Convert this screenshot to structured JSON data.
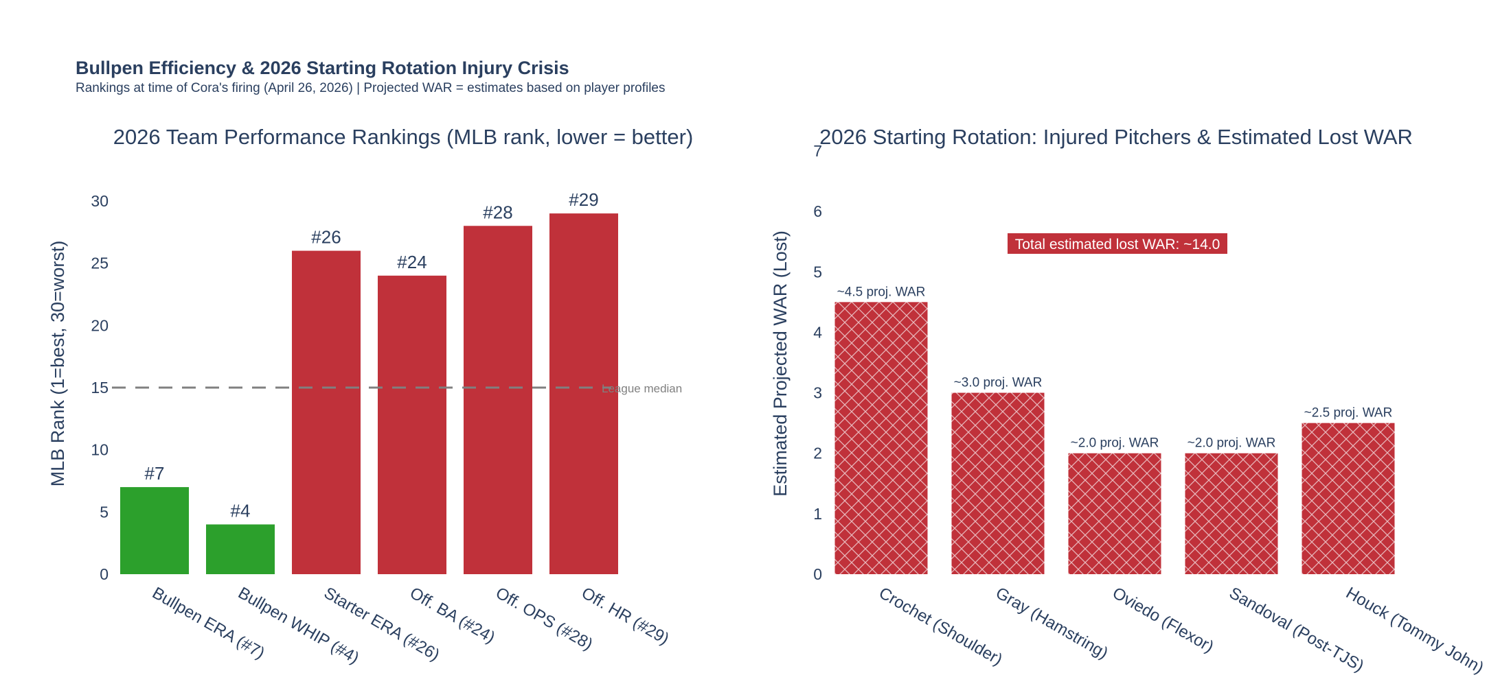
{
  "figure": {
    "title": "Bullpen Efficiency & 2026 Starting Rotation Injury Crisis",
    "subtitle": "Rankings at time of Cora's firing (April 26, 2026) | Projected WAR = estimates based on player profiles"
  },
  "chart_data": [
    {
      "type": "bar",
      "title": "2026 Team Performance Rankings (MLB rank, lower = better)",
      "xlabel": "",
      "ylabel": "MLB Rank (1=best, 30=worst)",
      "ylim": [
        0,
        30
      ],
      "yticks": [
        0,
        5,
        10,
        15,
        20,
        25,
        30
      ],
      "grid": false,
      "categories": [
        "Bullpen ERA (#7)",
        "Bullpen WHIP (#4)",
        "Starter ERA (#26)",
        "Off. BA (#24)",
        "Off. OPS (#28)",
        "Off. HR (#29)"
      ],
      "values": [
        7,
        4,
        26,
        24,
        28,
        29
      ],
      "data_labels": [
        "#7",
        "#4",
        "#26",
        "#24",
        "#28",
        "#29"
      ],
      "colors": [
        "#2ca02c",
        "#2ca02c",
        "#c0313a",
        "#c0313a",
        "#c0313a",
        "#c0313a"
      ],
      "reference_line": {
        "y": 15,
        "label": "League  median",
        "style": "dashed",
        "color": "#808080"
      }
    },
    {
      "type": "bar",
      "title": "2026 Starting Rotation: Injured Pitchers & Estimated Lost WAR",
      "xlabel": "",
      "ylabel": "Estimated Projected WAR (Lost)",
      "ylim": [
        0,
        7
      ],
      "yticks": [
        0,
        1,
        2,
        3,
        4,
        5,
        6,
        7
      ],
      "grid": false,
      "categories": [
        "Crochet (Shoulder)",
        "Gray (Hamstring)",
        "Oviedo (Flexor)",
        "Sandoval (Post-TJS)",
        "Houck (Tommy John)"
      ],
      "values": [
        4.5,
        3.0,
        2.0,
        2.0,
        2.5
      ],
      "data_labels": [
        "~4.5 proj. WAR",
        "~3.0 proj. WAR",
        "~2.0 proj. WAR",
        "~2.0 proj. WAR",
        "~2.5 proj. WAR"
      ],
      "color": "#c0313a",
      "pattern": "crosshatch",
      "annotation": "Total estimated lost WAR: ~14.0"
    }
  ]
}
